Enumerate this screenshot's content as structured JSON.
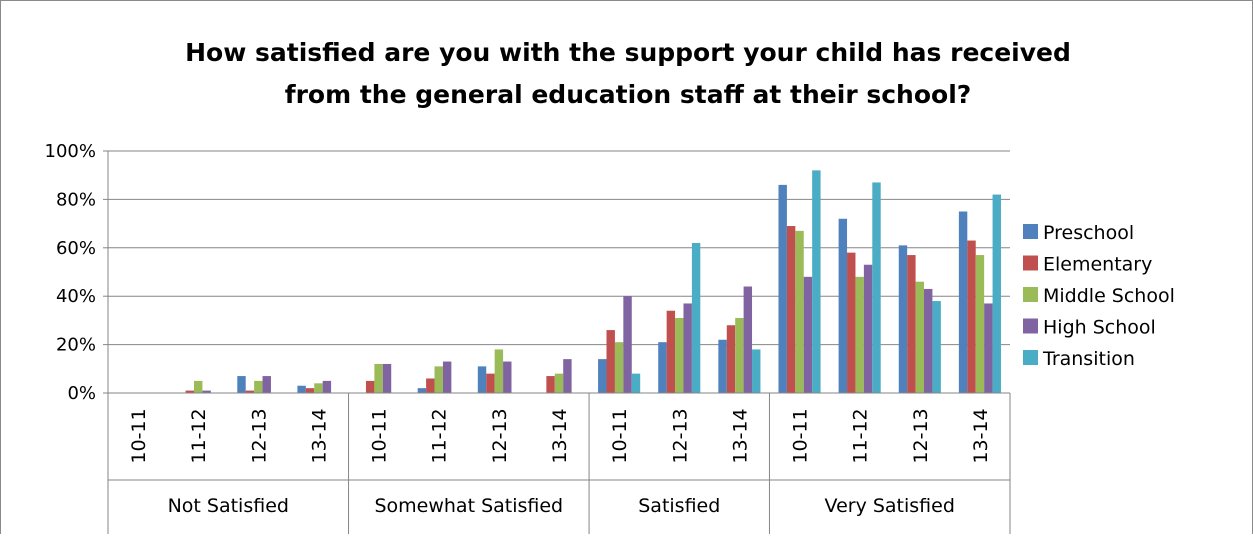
{
  "chart_data": {
    "type": "bar",
    "title_lines": [
      "How satisfied are you with the support your child has received",
      "from the general education staff at their school?"
    ],
    "groups": [
      {
        "label": "Not Satisfied",
        "years": [
          "10-11",
          "11-12",
          "12-13",
          "13-14"
        ]
      },
      {
        "label": "Somewhat Satisfied",
        "years": [
          "10-11",
          "11-12",
          "12-13",
          "13-14"
        ]
      },
      {
        "label": "Satisfied",
        "years": [
          "10-11",
          "12-13",
          "13-14"
        ]
      },
      {
        "label": "Very Satisfied",
        "years": [
          "10-11",
          "11-12",
          "12-13",
          "13-14"
        ]
      }
    ],
    "series": [
      {
        "name": "Preschool",
        "color": "#4F81BD",
        "values": [
          0,
          0,
          7,
          3,
          0,
          2,
          11,
          0,
          14,
          21,
          22,
          86,
          72,
          61,
          75
        ]
      },
      {
        "name": "Elementary",
        "color": "#C0504D",
        "values": [
          0,
          1,
          1,
          2,
          5,
          6,
          8,
          7,
          26,
          34,
          28,
          69,
          58,
          57,
          63
        ]
      },
      {
        "name": "Middle School",
        "color": "#9BBB59",
        "values": [
          0,
          5,
          5,
          4,
          12,
          11,
          18,
          8,
          21,
          31,
          31,
          67,
          48,
          46,
          57
        ]
      },
      {
        "name": "High School",
        "color": "#8064A2",
        "values": [
          0,
          1,
          7,
          5,
          12,
          13,
          13,
          14,
          40,
          37,
          44,
          48,
          53,
          43,
          37
        ]
      },
      {
        "name": "Transition",
        "color": "#4BACC6",
        "values": [
          0,
          0,
          0,
          0,
          0,
          0,
          0,
          0,
          8,
          62,
          18,
          92,
          87,
          38,
          82
        ]
      }
    ],
    "y_ticks": [
      "0%",
      "20%",
      "40%",
      "60%",
      "80%",
      "100%"
    ],
    "ylim": [
      0,
      100
    ],
    "grid": true,
    "legend_position": "right"
  }
}
